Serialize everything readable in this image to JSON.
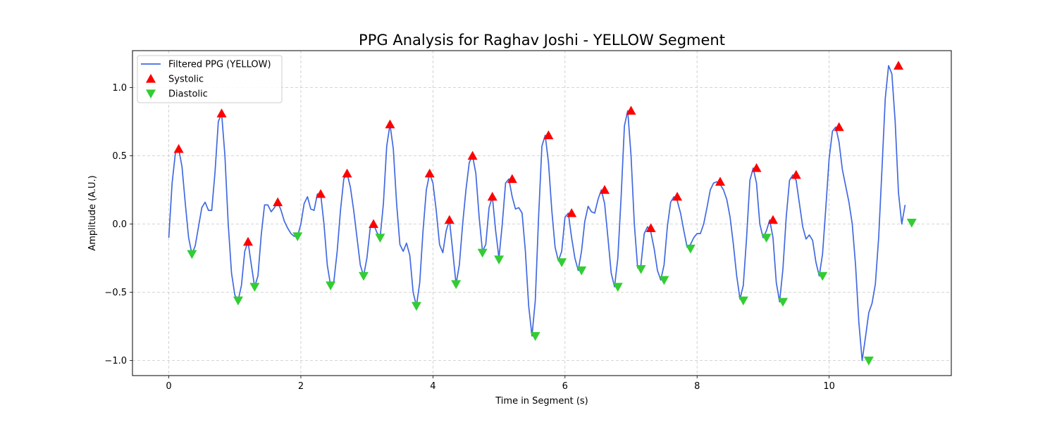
{
  "chart_data": {
    "type": "line",
    "title": "PPG Analysis for Raghav Joshi - YELLOW Segment",
    "xlabel": "Time in Segment (s)",
    "ylabel": "Amplitude (A.U.)",
    "xlim": [
      -0.55,
      11.85
    ],
    "ylim": [
      -1.11,
      1.27
    ],
    "grid": true,
    "legend_position": "upper-left",
    "x_ticks": [
      0,
      2,
      4,
      6,
      8,
      10
    ],
    "x_tick_labels": [
      "0",
      "2",
      "4",
      "6",
      "8",
      "10"
    ],
    "y_ticks": [
      -1.0,
      -0.5,
      0.0,
      0.5,
      1.0
    ],
    "y_tick_labels": [
      "−1.0",
      "−0.5",
      "0.0",
      "0.5",
      "1.0"
    ],
    "series": [
      {
        "name": "Filtered PPG (YELLOW)",
        "kind": "line",
        "color": "#4169E1",
        "points": [
          [
            0,
            -0.1
          ],
          [
            0.05,
            0.3
          ],
          [
            0.1,
            0.52
          ],
          [
            0.15,
            0.55
          ],
          [
            0.2,
            0.42
          ],
          [
            0.25,
            0.15
          ],
          [
            0.3,
            -0.1
          ],
          [
            0.35,
            -0.22
          ],
          [
            0.4,
            -0.16
          ],
          [
            0.45,
            -0.02
          ],
          [
            0.5,
            0.12
          ],
          [
            0.55,
            0.16
          ],
          [
            0.6,
            0.1
          ],
          [
            0.65,
            0.1
          ],
          [
            0.7,
            0.38
          ],
          [
            0.75,
            0.75
          ],
          [
            0.8,
            0.81
          ],
          [
            0.85,
            0.5
          ],
          [
            0.9,
            0.0
          ],
          [
            0.95,
            -0.36
          ],
          [
            1.0,
            -0.52
          ],
          [
            1.05,
            -0.56
          ],
          [
            1.1,
            -0.45
          ],
          [
            1.15,
            -0.2
          ],
          [
            1.2,
            -0.13
          ],
          [
            1.25,
            -0.3
          ],
          [
            1.3,
            -0.46
          ],
          [
            1.35,
            -0.38
          ],
          [
            1.4,
            -0.08
          ],
          [
            1.45,
            0.14
          ],
          [
            1.5,
            0.14
          ],
          [
            1.55,
            0.09
          ],
          [
            1.6,
            0.12
          ],
          [
            1.65,
            0.16
          ],
          [
            1.7,
            0.1
          ],
          [
            1.75,
            0.02
          ],
          [
            1.8,
            -0.03
          ],
          [
            1.85,
            -0.07
          ],
          [
            1.9,
            -0.09
          ],
          [
            1.95,
            -0.09
          ],
          [
            2.0,
            0.0
          ],
          [
            2.05,
            0.15
          ],
          [
            2.1,
            0.2
          ],
          [
            2.15,
            0.11
          ],
          [
            2.2,
            0.1
          ],
          [
            2.25,
            0.22
          ],
          [
            2.3,
            0.22
          ],
          [
            2.35,
            0.0
          ],
          [
            2.4,
            -0.3
          ],
          [
            2.45,
            -0.45
          ],
          [
            2.5,
            -0.42
          ],
          [
            2.55,
            -0.2
          ],
          [
            2.6,
            0.1
          ],
          [
            2.65,
            0.33
          ],
          [
            2.7,
            0.37
          ],
          [
            2.75,
            0.27
          ],
          [
            2.8,
            0.1
          ],
          [
            2.85,
            -0.1
          ],
          [
            2.9,
            -0.3
          ],
          [
            2.95,
            -0.38
          ],
          [
            3.0,
            -0.25
          ],
          [
            3.05,
            -0.03
          ],
          [
            3.1,
            0.0
          ],
          [
            3.15,
            -0.06
          ],
          [
            3.2,
            -0.1
          ],
          [
            3.25,
            0.15
          ],
          [
            3.3,
            0.57
          ],
          [
            3.35,
            0.73
          ],
          [
            3.4,
            0.55
          ],
          [
            3.45,
            0.15
          ],
          [
            3.5,
            -0.15
          ],
          [
            3.55,
            -0.2
          ],
          [
            3.6,
            -0.14
          ],
          [
            3.65,
            -0.23
          ],
          [
            3.7,
            -0.5
          ],
          [
            3.75,
            -0.6
          ],
          [
            3.8,
            -0.43
          ],
          [
            3.85,
            -0.05
          ],
          [
            3.9,
            0.25
          ],
          [
            3.95,
            0.37
          ],
          [
            4.0,
            0.3
          ],
          [
            4.05,
            0.1
          ],
          [
            4.1,
            -0.15
          ],
          [
            4.15,
            -0.21
          ],
          [
            4.2,
            -0.05
          ],
          [
            4.25,
            0.03
          ],
          [
            4.3,
            -0.2
          ],
          [
            4.35,
            -0.44
          ],
          [
            4.4,
            -0.3
          ],
          [
            4.45,
            0.0
          ],
          [
            4.5,
            0.25
          ],
          [
            4.55,
            0.45
          ],
          [
            4.6,
            0.5
          ],
          [
            4.65,
            0.37
          ],
          [
            4.7,
            0.05
          ],
          [
            4.75,
            -0.2
          ],
          [
            4.8,
            -0.15
          ],
          [
            4.85,
            0.12
          ],
          [
            4.9,
            0.2
          ],
          [
            4.95,
            -0.05
          ],
          [
            5.0,
            -0.25
          ],
          [
            5.05,
            0.0
          ],
          [
            5.1,
            0.3
          ],
          [
            5.15,
            0.33
          ],
          [
            5.2,
            0.2
          ],
          [
            5.25,
            0.11
          ],
          [
            5.3,
            0.12
          ],
          [
            5.35,
            0.08
          ],
          [
            5.4,
            -0.2
          ],
          [
            5.45,
            -0.6
          ],
          [
            5.5,
            -0.82
          ],
          [
            5.55,
            -0.56
          ],
          [
            5.6,
            0.05
          ],
          [
            5.65,
            0.57
          ],
          [
            5.7,
            0.65
          ],
          [
            5.75,
            0.45
          ],
          [
            5.8,
            0.1
          ],
          [
            5.85,
            -0.17
          ],
          [
            5.9,
            -0.27
          ],
          [
            5.95,
            -0.2
          ],
          [
            6.0,
            0.05
          ],
          [
            6.05,
            0.08
          ],
          [
            6.1,
            -0.1
          ],
          [
            6.15,
            -0.25
          ],
          [
            6.2,
            -0.34
          ],
          [
            6.25,
            -0.2
          ],
          [
            6.3,
            0.02
          ],
          [
            6.35,
            0.13
          ],
          [
            6.4,
            0.09
          ],
          [
            6.45,
            0.08
          ],
          [
            6.5,
            0.18
          ],
          [
            6.55,
            0.25
          ],
          [
            6.6,
            0.15
          ],
          [
            6.65,
            -0.1
          ],
          [
            6.7,
            -0.36
          ],
          [
            6.75,
            -0.46
          ],
          [
            6.8,
            -0.25
          ],
          [
            6.85,
            0.2
          ],
          [
            6.9,
            0.72
          ],
          [
            6.95,
            0.83
          ],
          [
            7.0,
            0.5
          ],
          [
            7.05,
            0.0
          ],
          [
            7.1,
            -0.32
          ],
          [
            7.15,
            -0.3
          ],
          [
            7.2,
            -0.07
          ],
          [
            7.25,
            -0.02
          ],
          [
            7.3,
            -0.06
          ],
          [
            7.35,
            -0.18
          ],
          [
            7.4,
            -0.34
          ],
          [
            7.45,
            -0.41
          ],
          [
            7.5,
            -0.3
          ],
          [
            7.55,
            -0.02
          ],
          [
            7.6,
            0.16
          ],
          [
            7.65,
            0.2
          ],
          [
            7.7,
            0.17
          ],
          [
            7.75,
            0.08
          ],
          [
            7.8,
            -0.05
          ],
          [
            7.85,
            -0.17
          ],
          [
            7.9,
            -0.15
          ],
          [
            7.95,
            -0.1
          ],
          [
            8.0,
            -0.07
          ],
          [
            8.05,
            -0.07
          ],
          [
            8.1,
            0.0
          ],
          [
            8.15,
            0.12
          ],
          [
            8.2,
            0.25
          ],
          [
            8.25,
            0.3
          ],
          [
            8.3,
            0.31
          ],
          [
            8.35,
            0.29
          ],
          [
            8.4,
            0.25
          ],
          [
            8.45,
            0.18
          ],
          [
            8.5,
            0.05
          ],
          [
            8.55,
            -0.15
          ],
          [
            8.6,
            -0.38
          ],
          [
            8.65,
            -0.55
          ],
          [
            8.7,
            -0.45
          ],
          [
            8.75,
            -0.1
          ],
          [
            8.8,
            0.32
          ],
          [
            8.85,
            0.41
          ],
          [
            8.9,
            0.3
          ],
          [
            8.95,
            0.0
          ],
          [
            9.0,
            -0.1
          ],
          [
            9.05,
            -0.05
          ],
          [
            9.1,
            0.03
          ],
          [
            9.15,
            -0.1
          ],
          [
            9.2,
            -0.43
          ],
          [
            9.25,
            -0.57
          ],
          [
            9.3,
            -0.33
          ],
          [
            9.35,
            0.05
          ],
          [
            9.4,
            0.32
          ],
          [
            9.45,
            0.36
          ],
          [
            9.5,
            0.32
          ],
          [
            9.55,
            0.15
          ],
          [
            9.6,
            -0.02
          ],
          [
            9.65,
            -0.11
          ],
          [
            9.7,
            -0.08
          ],
          [
            9.75,
            -0.12
          ],
          [
            9.8,
            -0.28
          ],
          [
            9.85,
            -0.38
          ],
          [
            9.9,
            -0.22
          ],
          [
            9.95,
            0.12
          ],
          [
            10.0,
            0.48
          ],
          [
            10.05,
            0.68
          ],
          [
            10.1,
            0.71
          ],
          [
            10.15,
            0.6
          ],
          [
            10.2,
            0.4
          ],
          [
            10.25,
            0.28
          ],
          [
            10.3,
            0.16
          ],
          [
            10.35,
            0.0
          ],
          [
            10.4,
            -0.3
          ],
          [
            10.45,
            -0.72
          ],
          [
            10.5,
            -1.0
          ],
          [
            10.55,
            -0.83
          ],
          [
            10.6,
            -0.65
          ],
          [
            10.65,
            -0.58
          ],
          [
            10.7,
            -0.44
          ],
          [
            10.75,
            -0.1
          ],
          [
            10.8,
            0.4
          ],
          [
            10.85,
            0.92
          ],
          [
            10.9,
            1.16
          ],
          [
            10.95,
            1.1
          ],
          [
            11.0,
            0.75
          ],
          [
            11.05,
            0.23
          ],
          [
            11.1,
            0.0
          ],
          [
            11.15,
            0.14
          ]
        ]
      },
      {
        "name": "Systolic",
        "kind": "marker-up",
        "color": "#FF0000",
        "points": [
          [
            0.15,
            0.55
          ],
          [
            0.8,
            0.81
          ],
          [
            1.2,
            -0.13
          ],
          [
            1.65,
            0.16
          ],
          [
            2.3,
            0.22
          ],
          [
            2.7,
            0.37
          ],
          [
            3.1,
            0.0
          ],
          [
            3.35,
            0.73
          ],
          [
            3.95,
            0.37
          ],
          [
            4.25,
            0.03
          ],
          [
            4.6,
            0.5
          ],
          [
            4.9,
            0.2
          ],
          [
            5.2,
            0.33
          ],
          [
            5.75,
            0.65
          ],
          [
            6.1,
            0.08
          ],
          [
            6.6,
            0.25
          ],
          [
            7.0,
            0.83
          ],
          [
            7.3,
            -0.03
          ],
          [
            7.7,
            0.2
          ],
          [
            8.35,
            0.31
          ],
          [
            8.9,
            0.41
          ],
          [
            9.15,
            0.03
          ],
          [
            9.5,
            0.36
          ],
          [
            10.15,
            0.71
          ],
          [
            11.05,
            1.16
          ]
        ]
      },
      {
        "name": "Diastolic",
        "kind": "marker-down",
        "color": "#32CD32",
        "points": [
          [
            0.35,
            -0.22
          ],
          [
            1.05,
            -0.56
          ],
          [
            1.3,
            -0.46
          ],
          [
            1.95,
            -0.09
          ],
          [
            2.45,
            -0.45
          ],
          [
            2.95,
            -0.38
          ],
          [
            3.2,
            -0.1
          ],
          [
            3.75,
            -0.6
          ],
          [
            4.35,
            -0.44
          ],
          [
            4.75,
            -0.21
          ],
          [
            5.0,
            -0.26
          ],
          [
            5.55,
            -0.82
          ],
          [
            5.95,
            -0.28
          ],
          [
            6.25,
            -0.34
          ],
          [
            6.8,
            -0.46
          ],
          [
            7.15,
            -0.33
          ],
          [
            7.5,
            -0.41
          ],
          [
            7.9,
            -0.18
          ],
          [
            8.7,
            -0.56
          ],
          [
            9.05,
            -0.1
          ],
          [
            9.3,
            -0.57
          ],
          [
            9.9,
            -0.38
          ],
          [
            10.6,
            -1.0
          ],
          [
            11.25,
            0.01
          ]
        ]
      }
    ]
  }
}
